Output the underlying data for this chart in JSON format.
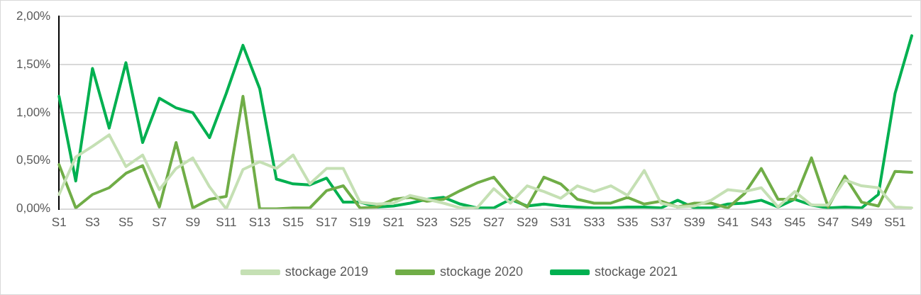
{
  "chart_data": {
    "type": "line",
    "categories": [
      "S1",
      null,
      "S3",
      null,
      "S5",
      null,
      "S7",
      null,
      "S9",
      null,
      "S11",
      null,
      "S13",
      null,
      "S15",
      null,
      "S17",
      null,
      "S19",
      null,
      "S21",
      null,
      "S23",
      null,
      "S25",
      null,
      "S27",
      null,
      "S29",
      null,
      "S31",
      null,
      "S33",
      null,
      "S35",
      null,
      "S37",
      null,
      "S39",
      null,
      "S41",
      null,
      "S43",
      null,
      "S45",
      null,
      "S47",
      null,
      "S49",
      null,
      "S51",
      null
    ],
    "series": [
      {
        "name": "stockage 2019",
        "color": "#c5e0b4",
        "values": [
          0.15,
          0.54,
          0.65,
          0.77,
          0.44,
          0.56,
          0.2,
          0.42,
          0.53,
          0.23,
          0.0,
          0.41,
          0.49,
          0.42,
          0.56,
          0.26,
          0.42,
          0.42,
          0.07,
          0.05,
          0.06,
          0.14,
          0.1,
          0.06,
          0.01,
          0.01,
          0.21,
          0.06,
          0.24,
          0.18,
          0.11,
          0.24,
          0.18,
          0.24,
          0.14,
          0.4,
          0.06,
          0.02,
          0.03,
          0.09,
          0.2,
          0.18,
          0.22,
          0.02,
          0.18,
          0.04,
          0.04,
          0.3,
          0.24,
          0.22,
          0.02,
          0.01
        ]
      },
      {
        "name": "stockage 2020",
        "color": "#70ad47",
        "values": [
          0.46,
          0.01,
          0.15,
          0.22,
          0.37,
          0.45,
          0.02,
          0.69,
          0.01,
          0.1,
          0.13,
          1.17,
          0.0,
          0.0,
          0.01,
          0.01,
          0.19,
          0.24,
          0.01,
          0.02,
          0.1,
          0.12,
          0.08,
          0.1,
          0.19,
          0.27,
          0.33,
          0.12,
          0.02,
          0.33,
          0.26,
          0.1,
          0.06,
          0.06,
          0.12,
          0.05,
          0.08,
          0.02,
          0.06,
          0.06,
          0.01,
          0.16,
          0.42,
          0.1,
          0.1,
          0.53,
          0.02,
          0.34,
          0.07,
          0.03,
          0.39,
          0.38
        ]
      },
      {
        "name": "stockage 2021",
        "color": "#00b050",
        "values": [
          1.17,
          0.29,
          1.46,
          0.84,
          1.52,
          0.69,
          1.15,
          1.05,
          1.0,
          0.74,
          1.2,
          1.7,
          1.25,
          0.31,
          0.26,
          0.25,
          0.32,
          0.07,
          0.07,
          0.02,
          0.03,
          0.06,
          0.1,
          0.12,
          0.05,
          0.01,
          0.01,
          0.1,
          0.03,
          0.05,
          0.03,
          0.02,
          0.01,
          0.01,
          0.02,
          0.02,
          0.01,
          0.09,
          0.01,
          0.01,
          0.05,
          0.06,
          0.09,
          0.02,
          0.1,
          0.04,
          0.01,
          0.02,
          0.01,
          0.15,
          1.2,
          1.8
        ]
      }
    ],
    "ylim": [
      0,
      2
    ],
    "yticks": [
      {
        "value": 0,
        "label": "0,00%"
      },
      {
        "value": 0.5,
        "label": "0,50%"
      },
      {
        "value": 1,
        "label": "1,00%"
      },
      {
        "value": 1.5,
        "label": "1,50%"
      },
      {
        "value": 2,
        "label": "2,00%"
      }
    ],
    "grid": "y",
    "legend": "bottom",
    "marker": "none",
    "line_style": "solid"
  }
}
